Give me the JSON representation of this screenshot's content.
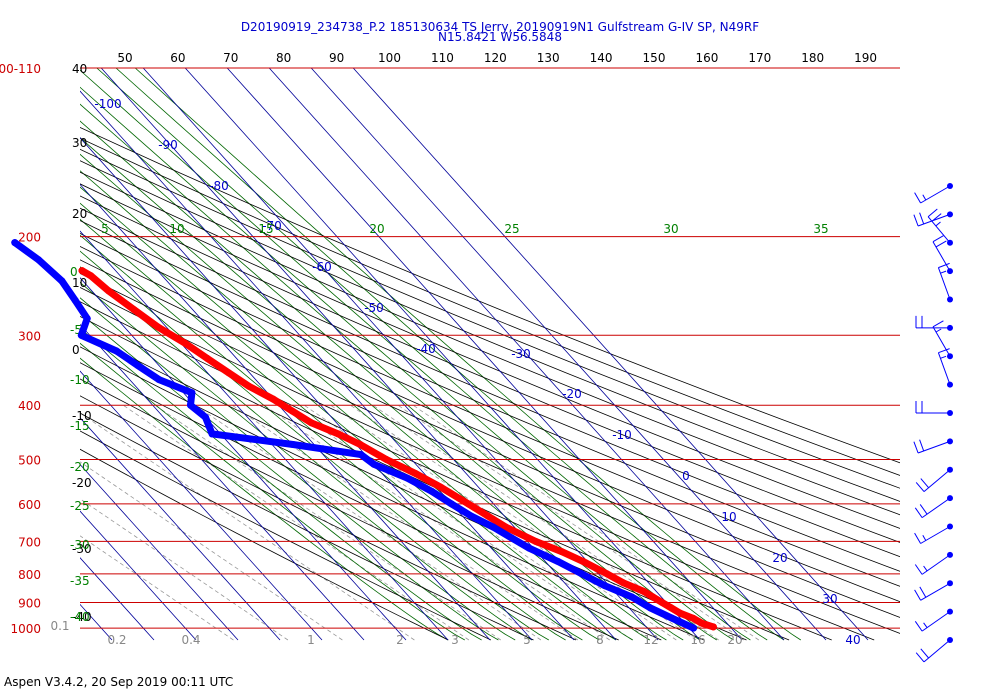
{
  "header": {
    "line1": "D20190919_234738_P.2 185130634 TS Jerry, 20190919N1 Gulfstream G-IV SP, N49RF",
    "line2": "N15.8421 W56.5848"
  },
  "footer": {
    "text": "Aspen V3.4.2, 20 Sep 2019  00:11 UTC"
  },
  "colors": {
    "temperature": "#ff0000",
    "dewpoint": "#0000ff",
    "isobar": "#cc0000",
    "isotherm": "#000099",
    "dry_adiabat": "#000000",
    "moist_adiabat": "#006600",
    "mixing_ratio": "#999999"
  },
  "chart_data": {
    "type": "skew-t",
    "pressure_labels": [
      "100-110",
      "200",
      "300",
      "400",
      "500",
      "600",
      "700",
      "800",
      "900",
      "1000"
    ],
    "top_temperature_labels": [
      "50",
      "60",
      "70",
      "80",
      "90",
      "100",
      "110",
      "120",
      "130",
      "140",
      "150",
      "160",
      "170",
      "180",
      "190"
    ],
    "left_height_labels": [
      "40",
      "30",
      "20",
      "10",
      "0",
      "-10",
      "-20",
      "-30",
      "-40"
    ],
    "isotherm_labels": [
      "-100",
      "-90",
      "-80",
      "-70",
      "-60",
      "-50",
      "-40",
      "-30",
      "-20",
      "-10",
      "0",
      "10",
      "20",
      "30",
      "40"
    ],
    "green_top_labels": [
      "5",
      "10",
      "15",
      "20",
      "25",
      "30",
      "35"
    ],
    "green_left_labels": [
      "0",
      "-5",
      "-10",
      "-15",
      "-20",
      "-25",
      "-30",
      "-35",
      "-40"
    ],
    "mixing_ratio_labels": [
      "0.1",
      "0.2",
      "0.4",
      "1",
      "2",
      "3",
      "5",
      "8",
      "12",
      "16",
      "20"
    ],
    "series": [
      {
        "key": "temperature",
        "points": [
          [
            230,
            -48
          ],
          [
            235,
            -47
          ],
          [
            250,
            -46
          ],
          [
            270,
            -44
          ],
          [
            290,
            -42
          ],
          [
            310,
            -39
          ],
          [
            330,
            -37
          ],
          [
            350,
            -35
          ],
          [
            370,
            -33
          ],
          [
            390,
            -30
          ],
          [
            410,
            -28
          ],
          [
            430,
            -26
          ],
          [
            450,
            -22
          ],
          [
            470,
            -19
          ],
          [
            500,
            -16
          ],
          [
            530,
            -12
          ],
          [
            560,
            -9
          ],
          [
            600,
            -6
          ],
          [
            630,
            -4
          ],
          [
            660,
            -2
          ],
          [
            700,
            2
          ],
          [
            730,
            6
          ],
          [
            760,
            9
          ],
          [
            800,
            12
          ],
          [
            830,
            14
          ],
          [
            860,
            17
          ],
          [
            880,
            18
          ],
          [
            900,
            19
          ],
          [
            920,
            20
          ],
          [
            940,
            21
          ],
          [
            960,
            23
          ],
          [
            980,
            24
          ],
          [
            995,
            26
          ]
        ]
      },
      {
        "key": "dewpoint",
        "points": [
          [
            205,
            -58
          ],
          [
            220,
            -56
          ],
          [
            240,
            -55
          ],
          [
            260,
            -56
          ],
          [
            280,
            -57
          ],
          [
            300,
            -62
          ],
          [
            320,
            -57
          ],
          [
            340,
            -55
          ],
          [
            360,
            -53
          ],
          [
            380,
            -48
          ],
          [
            400,
            -51
          ],
          [
            420,
            -50
          ],
          [
            450,
            -52
          ],
          [
            470,
            -35
          ],
          [
            490,
            -21
          ],
          [
            510,
            -20
          ],
          [
            540,
            -15
          ],
          [
            570,
            -12
          ],
          [
            600,
            -10
          ],
          [
            630,
            -8
          ],
          [
            660,
            -5
          ],
          [
            690,
            -3
          ],
          [
            720,
            -1
          ],
          [
            760,
            3
          ],
          [
            800,
            6
          ],
          [
            840,
            9
          ],
          [
            880,
            13
          ],
          [
            920,
            15
          ],
          [
            960,
            18
          ],
          [
            1000,
            21
          ]
        ]
      }
    ],
    "wind_barbs": [
      {
        "direction": 240,
        "speed_kt": 15
      },
      {
        "direction": 250,
        "speed_kt": 20
      },
      {
        "direction": 320,
        "speed_kt": 25
      },
      {
        "direction": 330,
        "speed_kt": 20
      },
      {
        "direction": 340,
        "speed_kt": 15
      },
      {
        "direction": 270,
        "speed_kt": 20
      },
      {
        "direction": 330,
        "speed_kt": 15
      },
      {
        "direction": 340,
        "speed_kt": 15
      },
      {
        "direction": 270,
        "speed_kt": 20
      },
      {
        "direction": 250,
        "speed_kt": 20
      },
      {
        "direction": 230,
        "speed_kt": 20
      },
      {
        "direction": 235,
        "speed_kt": 20
      },
      {
        "direction": 240,
        "speed_kt": 15
      },
      {
        "direction": 235,
        "speed_kt": 15
      },
      {
        "direction": 240,
        "speed_kt": 20
      },
      {
        "direction": 235,
        "speed_kt": 15
      },
      {
        "direction": 230,
        "speed_kt": 20
      }
    ]
  }
}
